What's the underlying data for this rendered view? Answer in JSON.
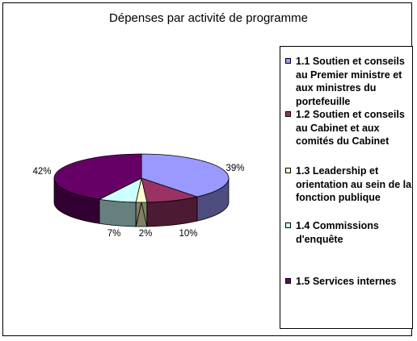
{
  "chart_data": {
    "type": "pie",
    "title": "Dépenses par activité de programme",
    "categories": [
      "1.1 Soutien et conseils au Premier ministre et aux ministres du portefeuille",
      "1.2 Soutien et conseils au Cabinet et aux comités du Cabinet",
      "1.3 Leadership et orientation au sein de la fonction publique",
      "1.4 Commissions d'enquête",
      "1.5 Services internes"
    ],
    "values": [
      39,
      10,
      2,
      7,
      42
    ],
    "labels": [
      "39%",
      "10%",
      "2%",
      "7%",
      "42%"
    ],
    "unit": "%",
    "colors": [
      "#9999ff",
      "#993366",
      "#ffffcc",
      "#ccffff",
      "#660066"
    ],
    "legend_position": "right",
    "three_d": true
  }
}
